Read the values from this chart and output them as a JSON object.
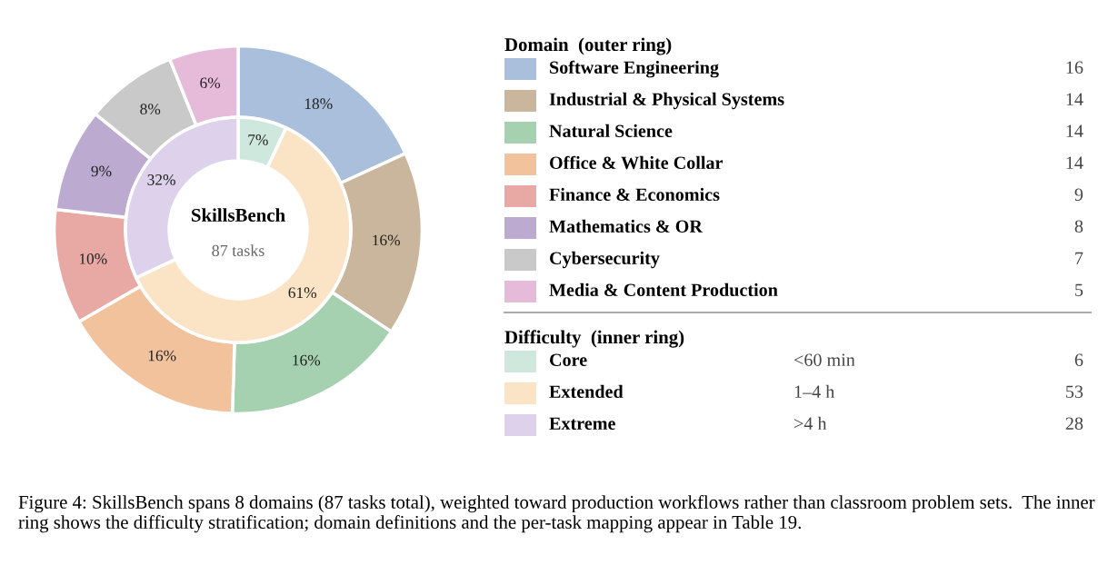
{
  "chart_data": {
    "type": "donut",
    "title": "SkillsBench",
    "subtitle": "87 tasks",
    "legend": "right",
    "categories": [
      "Software Engineering",
      "Industrial & Physical Systems",
      "Natural Science",
      "Office & White Collar",
      "Finance & Economics",
      "Mathematics & OR",
      "Cybersecurity",
      "Media & Content Production",
      "Core",
      "Extended",
      "Extreme"
    ],
    "series": [
      {
        "name": "Domain  (outer ring)",
        "values": [
          18,
          16,
          16,
          16,
          10,
          9,
          8,
          6,
          null,
          null,
          null
        ],
        "value_labels": [
          "18%",
          "16%",
          "16%",
          "16%",
          "10%",
          "9%",
          "8%",
          "6%",
          null,
          null,
          null
        ],
        "colors": [
          "#a9bfdb",
          "#c9b69d",
          "#a6d1b1",
          "#f2c29d",
          "#e8a9a5",
          "#bcaad1",
          "#c9c9c9",
          "#e6bbd9",
          null,
          null,
          null
        ]
      },
      {
        "name": "Difficulty  (inner ring)",
        "values": [
          null,
          null,
          null,
          null,
          null,
          null,
          null,
          null,
          7,
          61,
          32
        ],
        "value_labels": [
          null,
          null,
          null,
          null,
          null,
          null,
          null,
          null,
          "7%",
          "61%",
          "32%"
        ],
        "colors": [
          null,
          null,
          null,
          null,
          null,
          null,
          null,
          null,
          "#cfe8de",
          "#fbe3c6",
          "#ddd1eb"
        ]
      }
    ],
    "annotations": [
      "16",
      "14",
      "14",
      "14",
      "9",
      "8",
      "7",
      "5",
      "6",
      "53",
      "28",
      "<60 min",
      "1–4 h",
      ">4 h",
      "Figure 4: SkillsBench spans 8 domains (87 tasks total), weighted toward production workflows rather than classroom problem sets.  The inner ring shows the difficulty stratification; domain definitions and the per-task mapping appear in Table 19."
    ]
  }
}
